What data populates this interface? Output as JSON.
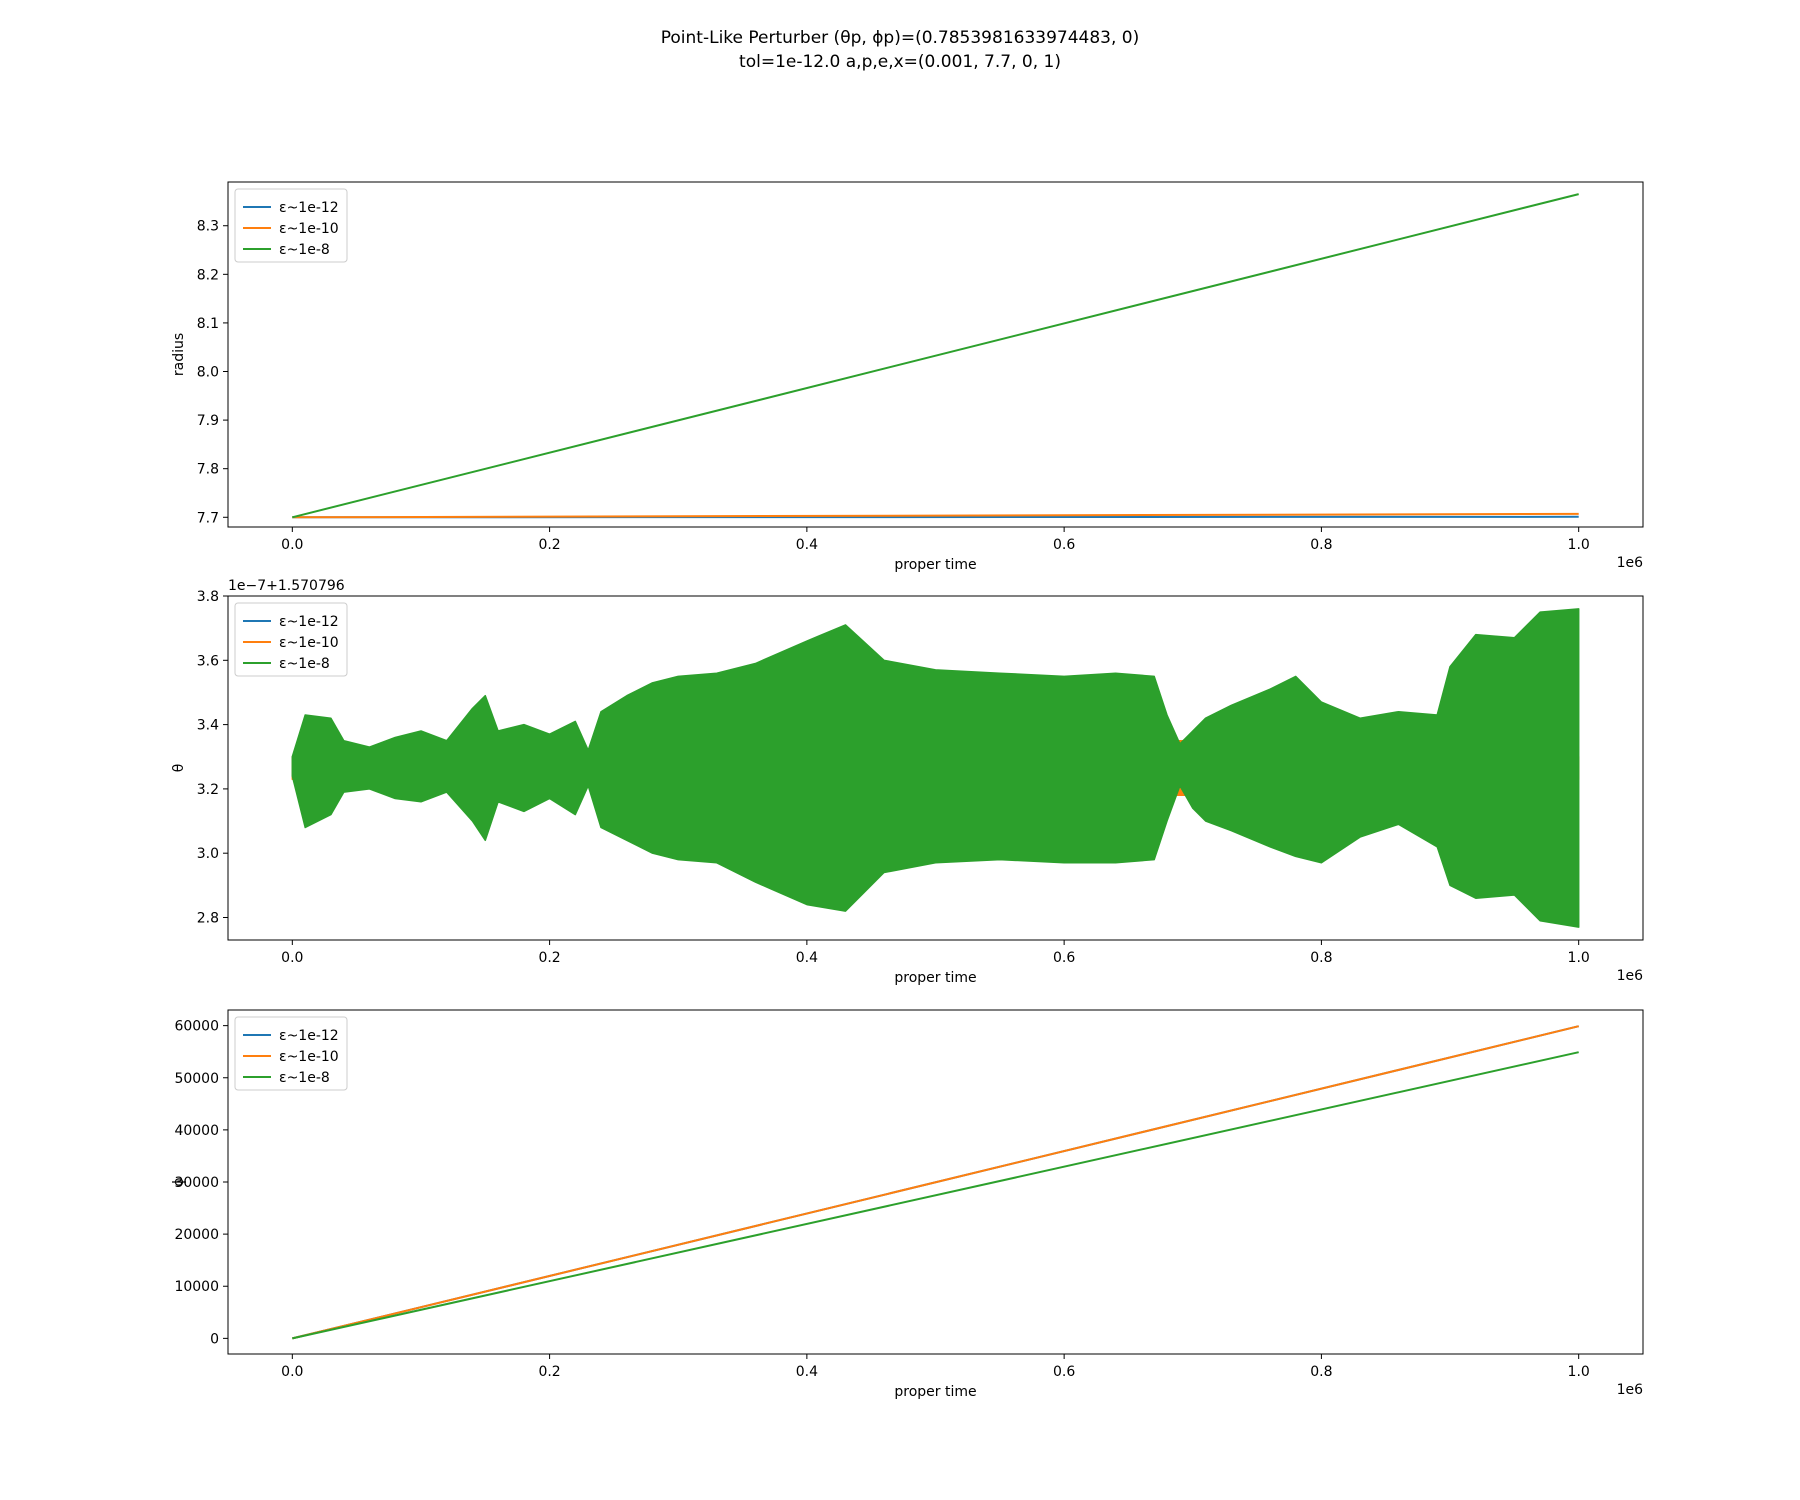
{
  "figure": {
    "title_line1": "Point-Like Perturber (θp, ϕp)=(0.7853981633974483, 0)",
    "title_line2": "tol=1e-12.0 a,p,e,x=(0.001, 7.7, 0, 1)"
  },
  "chart_data": [
    {
      "type": "line",
      "xlabel": "proper time",
      "ylabel": "radius",
      "x_offset_text": "1e6",
      "y_offset_text": "",
      "xlim": [
        -0.05,
        1.05
      ],
      "ylim": [
        7.68,
        8.39
      ],
      "xticks": [
        0.0,
        0.2,
        0.4,
        0.6,
        0.8,
        1.0
      ],
      "xtick_labels": [
        "0.0",
        "0.2",
        "0.4",
        "0.6",
        "0.8",
        "1.0"
      ],
      "yticks": [
        7.7,
        7.8,
        7.9,
        8.0,
        8.1,
        8.2,
        8.3
      ],
      "ytick_labels": [
        "7.7",
        "7.8",
        "7.9",
        "8.0",
        "8.1",
        "8.2",
        "8.3"
      ],
      "legend_placement": "upper-left",
      "grid": false,
      "series": [
        {
          "name": "ε~1e-12",
          "color": "#1f77b4",
          "x": [
            0,
            1.0
          ],
          "y": [
            7.7,
            7.701
          ]
        },
        {
          "name": "ε~1e-10",
          "color": "#ff7f0e",
          "x": [
            0,
            1.0
          ],
          "y": [
            7.7,
            7.707
          ]
        },
        {
          "name": "ε~1e-8",
          "color": "#2ca02c",
          "x": [
            0,
            1.0
          ],
          "y": [
            7.7,
            8.365
          ]
        }
      ]
    },
    {
      "type": "line",
      "xlabel": "proper time",
      "ylabel": "θ",
      "x_offset_text": "1e6",
      "y_offset_text": "1e−7+1.570796",
      "xlim": [
        -0.05,
        1.05
      ],
      "ylim": [
        2.73,
        3.8
      ],
      "xticks": [
        0.0,
        0.2,
        0.4,
        0.6,
        0.8,
        1.0
      ],
      "xtick_labels": [
        "0.0",
        "0.2",
        "0.4",
        "0.6",
        "0.8",
        "1.0"
      ],
      "yticks": [
        2.8,
        3.0,
        3.2,
        3.4,
        3.6,
        3.8
      ],
      "ytick_labels": [
        "2.8",
        "3.0",
        "3.2",
        "3.4",
        "3.6",
        "3.8"
      ],
      "legend_placement": "upper-left",
      "grid": false,
      "center": 3.265,
      "series": [
        {
          "name": "ε~1e-12",
          "color": "#1f77b4",
          "x": [
            0,
            1.0
          ],
          "y": [
            3.265,
            3.265
          ]
        },
        {
          "name": "ε~1e-10",
          "color": "#ff7f0e",
          "band_x": [
            0.0,
            0.68,
            0.685,
            0.72,
            0.725,
            1.0
          ],
          "band_upper": [
            3.3,
            3.3,
            3.35,
            3.35,
            3.3,
            3.3
          ],
          "band_lower": [
            3.23,
            3.23,
            3.18,
            3.18,
            3.23,
            3.23
          ]
        },
        {
          "name": "ε~1e-8",
          "color": "#2ca02c",
          "band_x": [
            0.0,
            0.01,
            0.03,
            0.04,
            0.06,
            0.08,
            0.1,
            0.12,
            0.14,
            0.15,
            0.16,
            0.18,
            0.2,
            0.22,
            0.23,
            0.24,
            0.26,
            0.28,
            0.3,
            0.33,
            0.36,
            0.4,
            0.43,
            0.46,
            0.5,
            0.55,
            0.6,
            0.64,
            0.67,
            0.68,
            0.69,
            0.7,
            0.71,
            0.73,
            0.76,
            0.78,
            0.8,
            0.83,
            0.86,
            0.89,
            0.9,
            0.92,
            0.95,
            0.97,
            1.0
          ],
          "band_upper": [
            3.3,
            3.43,
            3.42,
            3.35,
            3.33,
            3.36,
            3.38,
            3.35,
            3.45,
            3.49,
            3.38,
            3.4,
            3.37,
            3.41,
            3.32,
            3.44,
            3.49,
            3.53,
            3.55,
            3.56,
            3.59,
            3.66,
            3.71,
            3.6,
            3.57,
            3.56,
            3.55,
            3.56,
            3.55,
            3.43,
            3.34,
            3.38,
            3.42,
            3.46,
            3.51,
            3.55,
            3.47,
            3.42,
            3.44,
            3.43,
            3.58,
            3.68,
            3.67,
            3.75,
            3.76
          ],
          "band_lower": [
            3.24,
            3.08,
            3.12,
            3.19,
            3.2,
            3.17,
            3.16,
            3.19,
            3.1,
            3.04,
            3.16,
            3.13,
            3.17,
            3.12,
            3.21,
            3.08,
            3.04,
            3.0,
            2.98,
            2.97,
            2.91,
            2.84,
            2.82,
            2.94,
            2.97,
            2.98,
            2.97,
            2.97,
            2.98,
            3.1,
            3.21,
            3.14,
            3.1,
            3.07,
            3.02,
            2.99,
            2.97,
            3.05,
            3.09,
            3.02,
            2.9,
            2.86,
            2.87,
            2.79,
            2.77
          ]
        }
      ]
    },
    {
      "type": "line",
      "xlabel": "proper time",
      "ylabel": "ϕ",
      "x_offset_text": "1e6",
      "y_offset_text": "",
      "xlim": [
        -0.05,
        1.05
      ],
      "ylim": [
        -3000,
        63000
      ],
      "xticks": [
        0.0,
        0.2,
        0.4,
        0.6,
        0.8,
        1.0
      ],
      "xtick_labels": [
        "0.0",
        "0.2",
        "0.4",
        "0.6",
        "0.8",
        "1.0"
      ],
      "yticks": [
        0,
        10000,
        20000,
        30000,
        40000,
        50000,
        60000
      ],
      "ytick_labels": [
        "0",
        "10000",
        "20000",
        "30000",
        "40000",
        "50000",
        "60000"
      ],
      "legend_placement": "upper-left",
      "grid": false,
      "series": [
        {
          "name": "ε~1e-12",
          "color": "#1f77b4",
          "x": [
            0,
            1.0
          ],
          "y": [
            0,
            59900
          ]
        },
        {
          "name": "ε~1e-10",
          "color": "#ff7f0e",
          "x": [
            0,
            1.0
          ],
          "y": [
            0,
            59900
          ]
        },
        {
          "name": "ε~1e-8",
          "color": "#2ca02c",
          "x": [
            0,
            1.0
          ],
          "y": [
            0,
            54900
          ]
        }
      ]
    }
  ]
}
